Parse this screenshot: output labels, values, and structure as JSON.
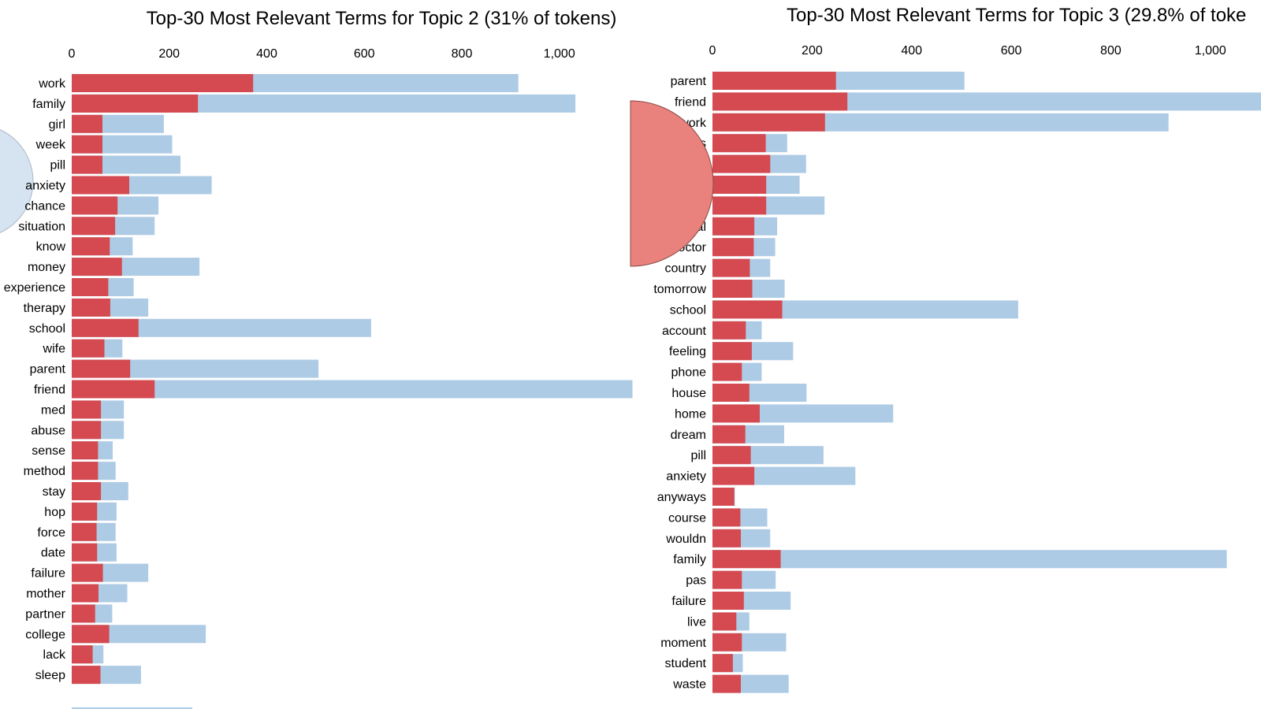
{
  "colors": {
    "overall": "#aecbe5",
    "topic": "#d44a50",
    "circle_blue": "#d6e3f0",
    "circle_red": "#e9827d"
  },
  "chart_data": [
    {
      "type": "bar",
      "orientation": "horizontal",
      "title": "Top-30 Most Relevant Terms for Topic 2 (31% of tokens)",
      "xlim": [
        0,
        1150
      ],
      "xticks": [
        0,
        200,
        400,
        600,
        800,
        1000
      ],
      "xtick_labels": [
        "0",
        "200",
        "400",
        "600",
        "800",
        "1,000"
      ],
      "categories": [
        "work",
        "family",
        "girl",
        "week",
        "pill",
        "anxiety",
        "chance",
        "situation",
        "know",
        "money",
        "experience",
        "therapy",
        "school",
        "wife",
        "parent",
        "friend",
        "med",
        "abuse",
        "sense",
        "method",
        "stay",
        "hop",
        "force",
        "date",
        "failure",
        "mother",
        "partner",
        "college",
        "lack",
        "sleep"
      ],
      "series": [
        {
          "values": [
            916,
            1033,
            189,
            206,
            223,
            287,
            178,
            170,
            125,
            262,
            127,
            157,
            614,
            104,
            506,
            1150,
            107,
            107,
            84,
            90,
            116,
            92,
            90,
            92,
            157,
            114,
            83,
            275,
            65,
            142
          ]
        },
        {
          "values": [
            372,
            259,
            63,
            63,
            63,
            118,
            94,
            89,
            78,
            103,
            75,
            79,
            137,
            67,
            120,
            170,
            60,
            60,
            54,
            54,
            60,
            52,
            51,
            52,
            64,
            55,
            48,
            77,
            43,
            59
          ]
        }
      ]
    },
    {
      "type": "bar",
      "orientation": "horizontal",
      "title": "Top-30 Most Relevant Terms for Topic 3 (29.8% of toke",
      "xlim": [
        0,
        1150
      ],
      "xticks": [
        0,
        200,
        400,
        600,
        800,
        1000
      ],
      "xtick_labels": [
        "0",
        "200",
        "400",
        "600",
        "800",
        "1,000"
      ],
      "categories": [
        "parent",
        "friend",
        "work",
        "class",
        "get",
        "health",
        "problem",
        "hospital",
        "doctor",
        "country",
        "tomorrow",
        "school",
        "account",
        "feeling",
        "phone",
        "house",
        "home",
        "dream",
        "pill",
        "anxiety",
        "anyways",
        "course",
        "wouldn",
        "family",
        "pas",
        "failure",
        "live",
        "moment",
        "student",
        "waste"
      ],
      "series": [
        {
          "values": [
            506,
            1150,
            916,
            150,
            188,
            175,
            225,
            130,
            126,
            116,
            145,
            614,
            99,
            162,
            99,
            189,
            363,
            144,
            223,
            287,
            45,
            110,
            116,
            1033,
            127,
            157,
            74,
            148,
            61,
            153
          ]
        },
        {
          "values": [
            248,
            271,
            226,
            107,
            116,
            108,
            108,
            84,
            83,
            75,
            80,
            140,
            67,
            79,
            59,
            74,
            95,
            66,
            77,
            84,
            44,
            56,
            57,
            137,
            59,
            63,
            48,
            59,
            41,
            57
          ]
        }
      ]
    }
  ]
}
